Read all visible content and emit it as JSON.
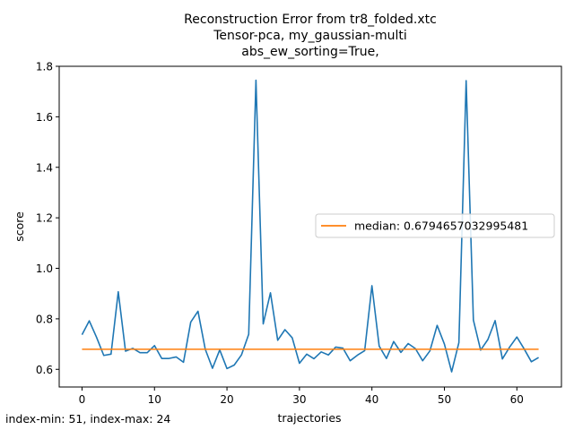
{
  "chart_data": {
    "type": "line",
    "title_lines": [
      "Reconstruction Error from tr8_folded.xtc",
      "Tensor-pca, my_gaussian-multi",
      "abs_ew_sorting=True,"
    ],
    "xlabel": "trajectories",
    "ylabel": "score",
    "xlim": [
      -3.15,
      66.15
    ],
    "ylim": [
      0.53,
      1.8
    ],
    "xticks": [
      0,
      10,
      20,
      30,
      40,
      50,
      60
    ],
    "yticks": [
      0.6,
      0.8,
      1.0,
      1.2,
      1.4,
      1.6,
      1.8
    ],
    "xtick_labels": [
      "0",
      "10",
      "20",
      "30",
      "40",
      "50",
      "60"
    ],
    "ytick_labels": [
      "0.6",
      "0.8",
      "1.0",
      "1.2",
      "1.4",
      "1.6",
      "1.8"
    ],
    "grid": false,
    "legend_position": "center-right",
    "series": [
      {
        "color": "#1f77b4",
        "x": [
          0,
          1,
          2,
          3,
          4,
          5,
          6,
          7,
          8,
          9,
          10,
          11,
          12,
          13,
          14,
          15,
          16,
          17,
          18,
          19,
          20,
          21,
          22,
          23,
          24,
          25,
          26,
          27,
          28,
          29,
          30,
          31,
          32,
          33,
          34,
          35,
          36,
          37,
          38,
          39,
          40,
          41,
          42,
          43,
          44,
          45,
          46,
          47,
          48,
          49,
          50,
          51,
          52,
          53,
          54,
          55,
          56,
          57,
          58,
          59,
          60,
          61,
          62,
          63
        ],
        "y": [
          0.737,
          0.792,
          0.727,
          0.655,
          0.66,
          0.907,
          0.672,
          0.683,
          0.666,
          0.666,
          0.694,
          0.643,
          0.643,
          0.649,
          0.628,
          0.787,
          0.83,
          0.68,
          0.604,
          0.677,
          0.603,
          0.617,
          0.657,
          0.739,
          1.745,
          0.78,
          0.903,
          0.715,
          0.757,
          0.725,
          0.624,
          0.66,
          0.642,
          0.669,
          0.657,
          0.688,
          0.684,
          0.634,
          0.656,
          0.674,
          0.931,
          0.692,
          0.643,
          0.71,
          0.667,
          0.702,
          0.682,
          0.634,
          0.673,
          0.774,
          0.7,
          0.59,
          0.706,
          1.743,
          0.795,
          0.676,
          0.718,
          0.793,
          0.641,
          0.688,
          0.728,
          0.681,
          0.63,
          0.647
        ]
      },
      {
        "name": "median: 0.6794657032995481",
        "color": "#ff7f0e",
        "x": [
          0,
          63
        ],
        "y": [
          0.6794657032995481,
          0.6794657032995481
        ]
      }
    ]
  },
  "footer_text": "index-min: 51, index-max: 24"
}
